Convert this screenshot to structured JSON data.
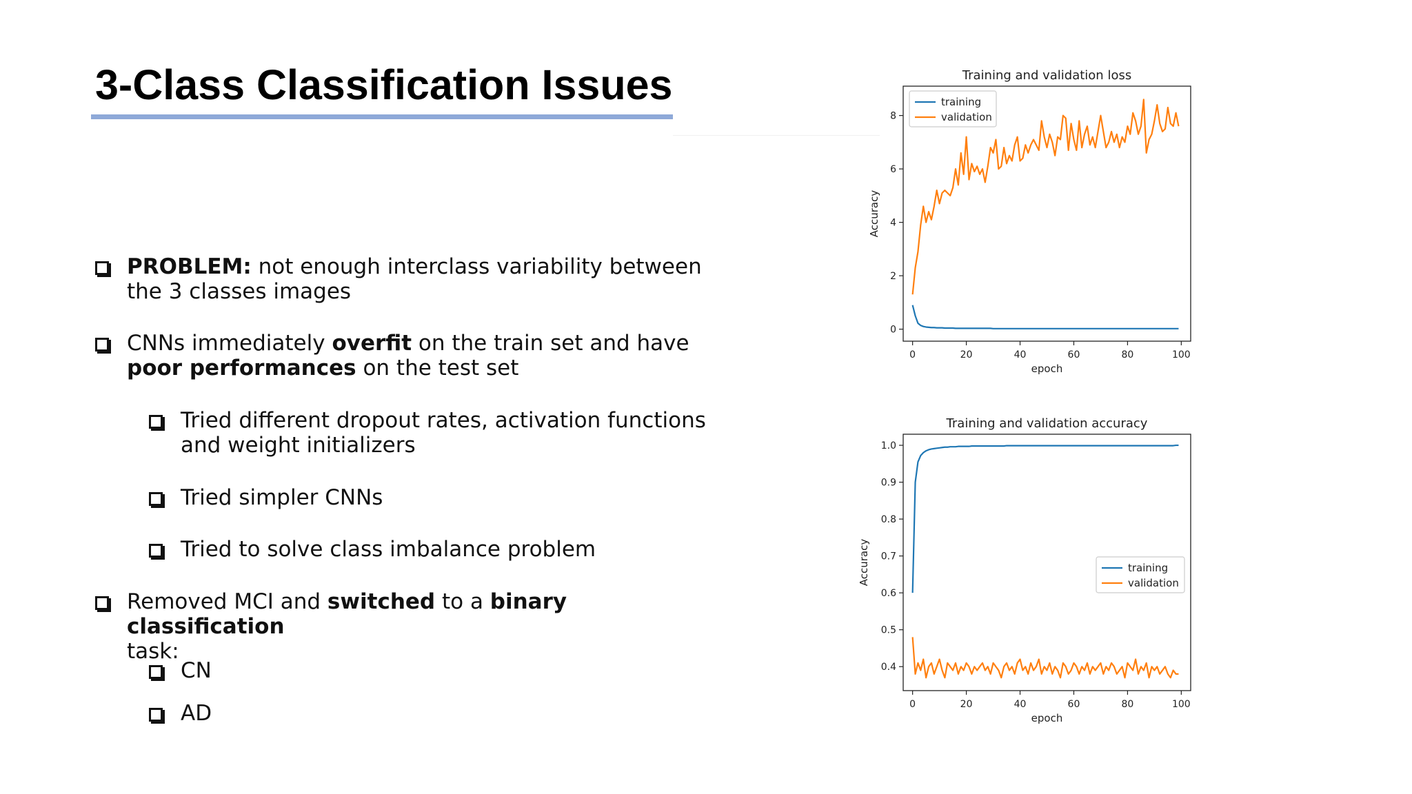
{
  "slide": {
    "title": "3-Class Classification Issues",
    "bullets": [
      {
        "id": "b1",
        "level": 1,
        "parts": [
          {
            "bold": true,
            "text": "PROBLEM:"
          },
          {
            "bold": false,
            "text": " not enough interclass variability between"
          }
        ],
        "cont": [
          {
            "bold": false,
            "text": "the 3 classes images"
          }
        ]
      },
      {
        "id": "b2",
        "level": 1,
        "parts": [
          {
            "bold": false,
            "text": "CNNs immediately "
          },
          {
            "bold": true,
            "text": "overfit"
          },
          {
            "bold": false,
            "text": " on the train set and have"
          }
        ],
        "cont": [
          {
            "bold": true,
            "text": "poor performances"
          },
          {
            "bold": false,
            "text": " on the test set"
          }
        ]
      },
      {
        "id": "b3",
        "level": 2,
        "parts": [
          {
            "bold": false,
            "text": "Tried different dropout rates, activation functions"
          }
        ],
        "cont": [
          {
            "bold": false,
            "text": "and weight initializers"
          }
        ]
      },
      {
        "id": "b4",
        "level": 2,
        "parts": [
          {
            "bold": false,
            "text": "Tried simpler CNNs"
          }
        ],
        "cont": []
      },
      {
        "id": "b5",
        "level": 2,
        "parts": [
          {
            "bold": false,
            "text": "Tried to solve class imbalance problem"
          }
        ],
        "cont": []
      },
      {
        "id": "b6",
        "level": 1,
        "parts": [
          {
            "bold": false,
            "text": "Removed MCI and "
          },
          {
            "bold": true,
            "text": "switched"
          },
          {
            "bold": false,
            "text": " to a "
          },
          {
            "bold": true,
            "text": "binary classification"
          }
        ],
        "cont": [
          {
            "bold": false,
            "text": "task:"
          }
        ]
      },
      {
        "id": "b7",
        "level": 2,
        "parts": [
          {
            "bold": false,
            "text": "CN"
          }
        ],
        "cont": []
      },
      {
        "id": "b8",
        "level": 2,
        "parts": [
          {
            "bold": false,
            "text": "AD"
          }
        ],
        "cont": []
      }
    ],
    "colors": {
      "title_underline": "#8ea9d8",
      "training": "#1f77b4",
      "validation": "#ff7f0e"
    }
  },
  "chart_data": [
    {
      "type": "line",
      "title": "Training and validation loss",
      "xlabel": "epoch",
      "ylabel": "Accuracy",
      "xlim": [
        -3.5,
        103.5
      ],
      "ylim": [
        -0.45,
        9.1
      ],
      "xticks": [
        0,
        20,
        40,
        60,
        80,
        100
      ],
      "yticks": [
        0,
        2,
        4,
        6,
        8
      ],
      "xtick_labels": [
        "0",
        "20",
        "40",
        "60",
        "80",
        "100"
      ],
      "ytick_labels": [
        "0",
        "2",
        "4",
        "6",
        "8"
      ],
      "grid": false,
      "legend_position": "top-left",
      "x": [
        0,
        1,
        2,
        3,
        4,
        5,
        6,
        7,
        8,
        9,
        10,
        11,
        12,
        13,
        14,
        15,
        16,
        17,
        18,
        19,
        20,
        21,
        22,
        23,
        24,
        25,
        26,
        27,
        28,
        29,
        30,
        31,
        32,
        33,
        34,
        35,
        36,
        37,
        38,
        39,
        40,
        41,
        42,
        43,
        44,
        45,
        46,
        47,
        48,
        49,
        50,
        51,
        52,
        53,
        54,
        55,
        56,
        57,
        58,
        59,
        60,
        61,
        62,
        63,
        64,
        65,
        66,
        67,
        68,
        69,
        70,
        71,
        72,
        73,
        74,
        75,
        76,
        77,
        78,
        79,
        80,
        81,
        82,
        83,
        84,
        85,
        86,
        87,
        88,
        89,
        90,
        91,
        92,
        93,
        94,
        95,
        96,
        97,
        98,
        99
      ],
      "series": [
        {
          "name": "training",
          "color": "#1f77b4",
          "values": [
            0.9,
            0.5,
            0.22,
            0.14,
            0.1,
            0.08,
            0.07,
            0.06,
            0.06,
            0.05,
            0.05,
            0.05,
            0.04,
            0.04,
            0.04,
            0.04,
            0.03,
            0.03,
            0.03,
            0.03,
            0.03,
            0.03,
            0.03,
            0.03,
            0.03,
            0.03,
            0.03,
            0.03,
            0.03,
            0.03,
            0.02,
            0.02,
            0.02,
            0.02,
            0.02,
            0.02,
            0.02,
            0.02,
            0.02,
            0.02,
            0.02,
            0.02,
            0.02,
            0.02,
            0.02,
            0.02,
            0.02,
            0.02,
            0.02,
            0.02,
            0.02,
            0.02,
            0.02,
            0.02,
            0.02,
            0.02,
            0.02,
            0.02,
            0.02,
            0.02,
            0.02,
            0.02,
            0.02,
            0.02,
            0.02,
            0.02,
            0.02,
            0.02,
            0.02,
            0.02,
            0.02,
            0.02,
            0.02,
            0.02,
            0.02,
            0.02,
            0.02,
            0.02,
            0.02,
            0.02,
            0.02,
            0.02,
            0.02,
            0.02,
            0.02,
            0.02,
            0.02,
            0.02,
            0.02,
            0.02,
            0.02,
            0.02,
            0.02,
            0.02,
            0.02,
            0.02,
            0.02,
            0.02,
            0.02,
            0.02
          ]
        },
        {
          "name": "validation",
          "color": "#ff7f0e",
          "values": [
            1.3,
            2.3,
            2.9,
            3.9,
            4.6,
            4.0,
            4.4,
            4.1,
            4.6,
            5.2,
            4.7,
            5.1,
            5.2,
            5.1,
            5.0,
            5.3,
            6.0,
            5.4,
            6.6,
            5.8,
            7.2,
            5.6,
            6.2,
            5.9,
            6.1,
            5.8,
            6.0,
            5.5,
            6.1,
            6.8,
            6.6,
            7.1,
            6.0,
            6.1,
            6.8,
            6.2,
            6.5,
            6.3,
            6.9,
            7.2,
            6.3,
            6.4,
            6.9,
            6.6,
            6.9,
            7.1,
            6.9,
            6.7,
            7.8,
            7.2,
            6.8,
            7.3,
            7.0,
            6.5,
            7.2,
            7.1,
            8.0,
            7.9,
            6.7,
            7.7,
            7.1,
            6.7,
            7.8,
            6.8,
            7.3,
            7.6,
            6.9,
            7.2,
            6.8,
            7.4,
            8.0,
            7.4,
            6.8,
            7.0,
            7.4,
            7.0,
            7.3,
            6.8,
            7.2,
            7.0,
            7.6,
            7.3,
            8.1,
            7.8,
            7.3,
            7.6,
            8.6,
            6.6,
            7.1,
            7.3,
            7.8,
            8.4,
            7.7,
            7.4,
            7.5,
            8.3,
            7.7,
            7.6,
            8.1,
            7.6
          ]
        }
      ]
    },
    {
      "type": "line",
      "title": "Training and validation accuracy",
      "xlabel": "epoch",
      "ylabel": "Accuracy",
      "xlim": [
        -3.5,
        103.5
      ],
      "ylim": [
        0.335,
        1.03
      ],
      "xticks": [
        0,
        20,
        40,
        60,
        80,
        100
      ],
      "yticks": [
        0.4,
        0.5,
        0.6,
        0.7,
        0.8,
        0.9,
        1.0
      ],
      "xtick_labels": [
        "0",
        "20",
        "40",
        "60",
        "80",
        "100"
      ],
      "ytick_labels": [
        "0.4",
        "0.5",
        "0.6",
        "0.7",
        "0.8",
        "0.9",
        "1.0"
      ],
      "grid": false,
      "legend_position": "center-right",
      "x": [
        0,
        1,
        2,
        3,
        4,
        5,
        6,
        7,
        8,
        9,
        10,
        11,
        12,
        13,
        14,
        15,
        16,
        17,
        18,
        19,
        20,
        21,
        22,
        23,
        24,
        25,
        26,
        27,
        28,
        29,
        30,
        31,
        32,
        33,
        34,
        35,
        36,
        37,
        38,
        39,
        40,
        41,
        42,
        43,
        44,
        45,
        46,
        47,
        48,
        49,
        50,
        51,
        52,
        53,
        54,
        55,
        56,
        57,
        58,
        59,
        60,
        61,
        62,
        63,
        64,
        65,
        66,
        67,
        68,
        69,
        70,
        71,
        72,
        73,
        74,
        75,
        76,
        77,
        78,
        79,
        80,
        81,
        82,
        83,
        84,
        85,
        86,
        87,
        88,
        89,
        90,
        91,
        92,
        93,
        94,
        95,
        96,
        97,
        98,
        99
      ],
      "series": [
        {
          "name": "training",
          "color": "#1f77b4",
          "values": [
            0.6,
            0.9,
            0.955,
            0.972,
            0.98,
            0.985,
            0.988,
            0.99,
            0.991,
            0.992,
            0.993,
            0.994,
            0.995,
            0.995,
            0.996,
            0.996,
            0.996,
            0.997,
            0.997,
            0.997,
            0.997,
            0.997,
            0.998,
            0.998,
            0.998,
            0.998,
            0.998,
            0.998,
            0.998,
            0.998,
            0.998,
            0.998,
            0.998,
            0.998,
            0.998,
            0.999,
            0.999,
            0.999,
            0.999,
            0.999,
            0.999,
            0.999,
            0.999,
            0.999,
            0.999,
            0.999,
            0.999,
            0.999,
            0.999,
            0.999,
            0.999,
            0.999,
            0.999,
            0.999,
            0.999,
            0.999,
            0.999,
            0.999,
            0.999,
            0.999,
            0.999,
            0.999,
            0.999,
            0.999,
            0.999,
            0.999,
            0.999,
            0.999,
            0.999,
            0.999,
            0.999,
            0.999,
            0.999,
            0.999,
            0.999,
            0.999,
            0.999,
            0.999,
            0.999,
            0.999,
            0.999,
            0.999,
            0.999,
            0.999,
            0.999,
            0.999,
            0.999,
            0.999,
            0.999,
            0.999,
            0.999,
            0.999,
            0.999,
            0.999,
            0.999,
            0.999,
            0.999,
            0.999,
            1.0,
            1.0
          ]
        },
        {
          "name": "validation",
          "color": "#ff7f0e",
          "values": [
            0.48,
            0.38,
            0.41,
            0.39,
            0.42,
            0.37,
            0.4,
            0.41,
            0.38,
            0.4,
            0.42,
            0.39,
            0.37,
            0.41,
            0.4,
            0.39,
            0.41,
            0.38,
            0.4,
            0.39,
            0.41,
            0.4,
            0.38,
            0.4,
            0.39,
            0.4,
            0.41,
            0.39,
            0.4,
            0.38,
            0.41,
            0.4,
            0.39,
            0.37,
            0.4,
            0.41,
            0.39,
            0.4,
            0.38,
            0.41,
            0.42,
            0.39,
            0.4,
            0.38,
            0.41,
            0.39,
            0.4,
            0.42,
            0.38,
            0.4,
            0.39,
            0.41,
            0.38,
            0.4,
            0.39,
            0.37,
            0.41,
            0.4,
            0.38,
            0.39,
            0.41,
            0.4,
            0.38,
            0.4,
            0.39,
            0.41,
            0.38,
            0.4,
            0.39,
            0.4,
            0.41,
            0.38,
            0.4,
            0.39,
            0.41,
            0.4,
            0.38,
            0.39,
            0.4,
            0.37,
            0.41,
            0.4,
            0.39,
            0.42,
            0.38,
            0.4,
            0.39,
            0.41,
            0.37,
            0.4,
            0.39,
            0.4,
            0.38,
            0.39,
            0.4,
            0.38,
            0.37,
            0.39,
            0.38,
            0.38
          ]
        }
      ]
    }
  ]
}
